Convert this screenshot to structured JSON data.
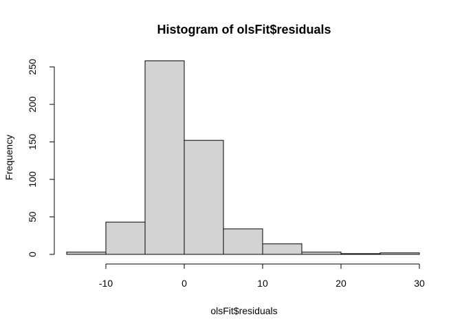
{
  "chart_data": {
    "type": "bar",
    "title": "Histogram of olsFit$residuals",
    "xlabel": "olsFit$residuals",
    "ylabel": "Frequency",
    "bins": [
      {
        "start": -15,
        "end": -10,
        "count": 3
      },
      {
        "start": -10,
        "end": -5,
        "count": 43
      },
      {
        "start": -5,
        "end": 0,
        "count": 258
      },
      {
        "start": 0,
        "end": 5,
        "count": 152
      },
      {
        "start": 5,
        "end": 10,
        "count": 34
      },
      {
        "start": 10,
        "end": 15,
        "count": 14
      },
      {
        "start": 15,
        "end": 20,
        "count": 3
      },
      {
        "start": 20,
        "end": 25,
        "count": 1
      },
      {
        "start": 25,
        "end": 30,
        "count": 2
      }
    ],
    "xlim": [
      -15,
      30
    ],
    "ylim": [
      0,
      258
    ],
    "xticks": [
      -10,
      0,
      10,
      20,
      30
    ],
    "yticks": [
      0,
      50,
      100,
      150,
      200,
      250
    ],
    "grid": false,
    "colors": {
      "bar_fill": "#d3d3d3",
      "bar_stroke": "#000000"
    }
  }
}
